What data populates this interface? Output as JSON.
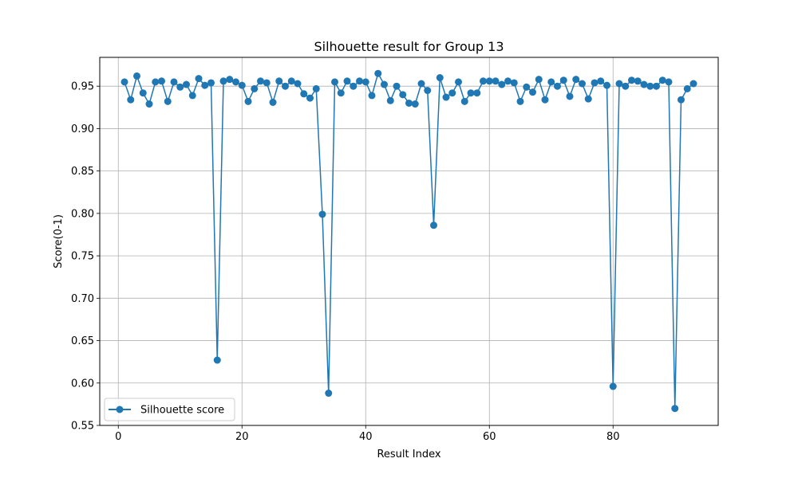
{
  "chart_data": {
    "type": "line",
    "title": "Silhouette result for Group 13",
    "xlabel": "Result Index",
    "ylabel": "Score(0-1)",
    "xlim": [
      -3,
      97
    ],
    "ylim": [
      0.55,
      0.984
    ],
    "xticks": [
      0,
      20,
      40,
      60,
      80
    ],
    "yticks": [
      0.55,
      0.6,
      0.65,
      0.7,
      0.75,
      0.8,
      0.85,
      0.9,
      0.95
    ],
    "ytick_labels": [
      "0.55",
      "0.60",
      "0.65",
      "0.70",
      "0.75",
      "0.80",
      "0.85",
      "0.90",
      "0.95"
    ],
    "grid": true,
    "legend_position": "lower-left",
    "series": [
      {
        "name": "Silhouette score",
        "color": "#1f77b4",
        "marker": "circle",
        "x": [
          1,
          2,
          3,
          4,
          5,
          6,
          7,
          8,
          9,
          10,
          11,
          12,
          13,
          14,
          15,
          16,
          17,
          18,
          19,
          20,
          21,
          22,
          23,
          24,
          25,
          26,
          27,
          28,
          29,
          30,
          31,
          32,
          33,
          34,
          35,
          36,
          37,
          38,
          39,
          40,
          41,
          42,
          43,
          44,
          45,
          46,
          47,
          48,
          49,
          50,
          51,
          52,
          53,
          54,
          55,
          56,
          57,
          58,
          59,
          60,
          61,
          62,
          63,
          64,
          65,
          66,
          67,
          68,
          69,
          70,
          71,
          72,
          73,
          74,
          75,
          76,
          77,
          78,
          79,
          80,
          81,
          82,
          83,
          84,
          85,
          86,
          87,
          88,
          89,
          90,
          91,
          92,
          93
        ],
        "y": [
          0.955,
          0.934,
          0.962,
          0.942,
          0.929,
          0.955,
          0.956,
          0.932,
          0.955,
          0.949,
          0.952,
          0.939,
          0.959,
          0.951,
          0.954,
          0.627,
          0.956,
          0.958,
          0.955,
          0.951,
          0.932,
          0.947,
          0.956,
          0.954,
          0.931,
          0.956,
          0.95,
          0.956,
          0.953,
          0.941,
          0.936,
          0.947,
          0.799,
          0.588,
          0.955,
          0.942,
          0.956,
          0.95,
          0.956,
          0.955,
          0.939,
          0.965,
          0.952,
          0.933,
          0.95,
          0.94,
          0.93,
          0.929,
          0.953,
          0.945,
          0.786,
          0.96,
          0.937,
          0.942,
          0.955,
          0.932,
          0.942,
          0.942,
          0.956,
          0.956,
          0.956,
          0.952,
          0.956,
          0.954,
          0.932,
          0.949,
          0.943,
          0.958,
          0.934,
          0.955,
          0.95,
          0.957,
          0.938,
          0.958,
          0.953,
          0.935,
          0.954,
          0.956,
          0.951,
          0.596,
          0.953,
          0.95,
          0.957,
          0.956,
          0.952,
          0.95,
          0.95,
          0.957,
          0.955,
          0.57,
          0.934,
          0.947,
          0.953
        ]
      }
    ]
  }
}
